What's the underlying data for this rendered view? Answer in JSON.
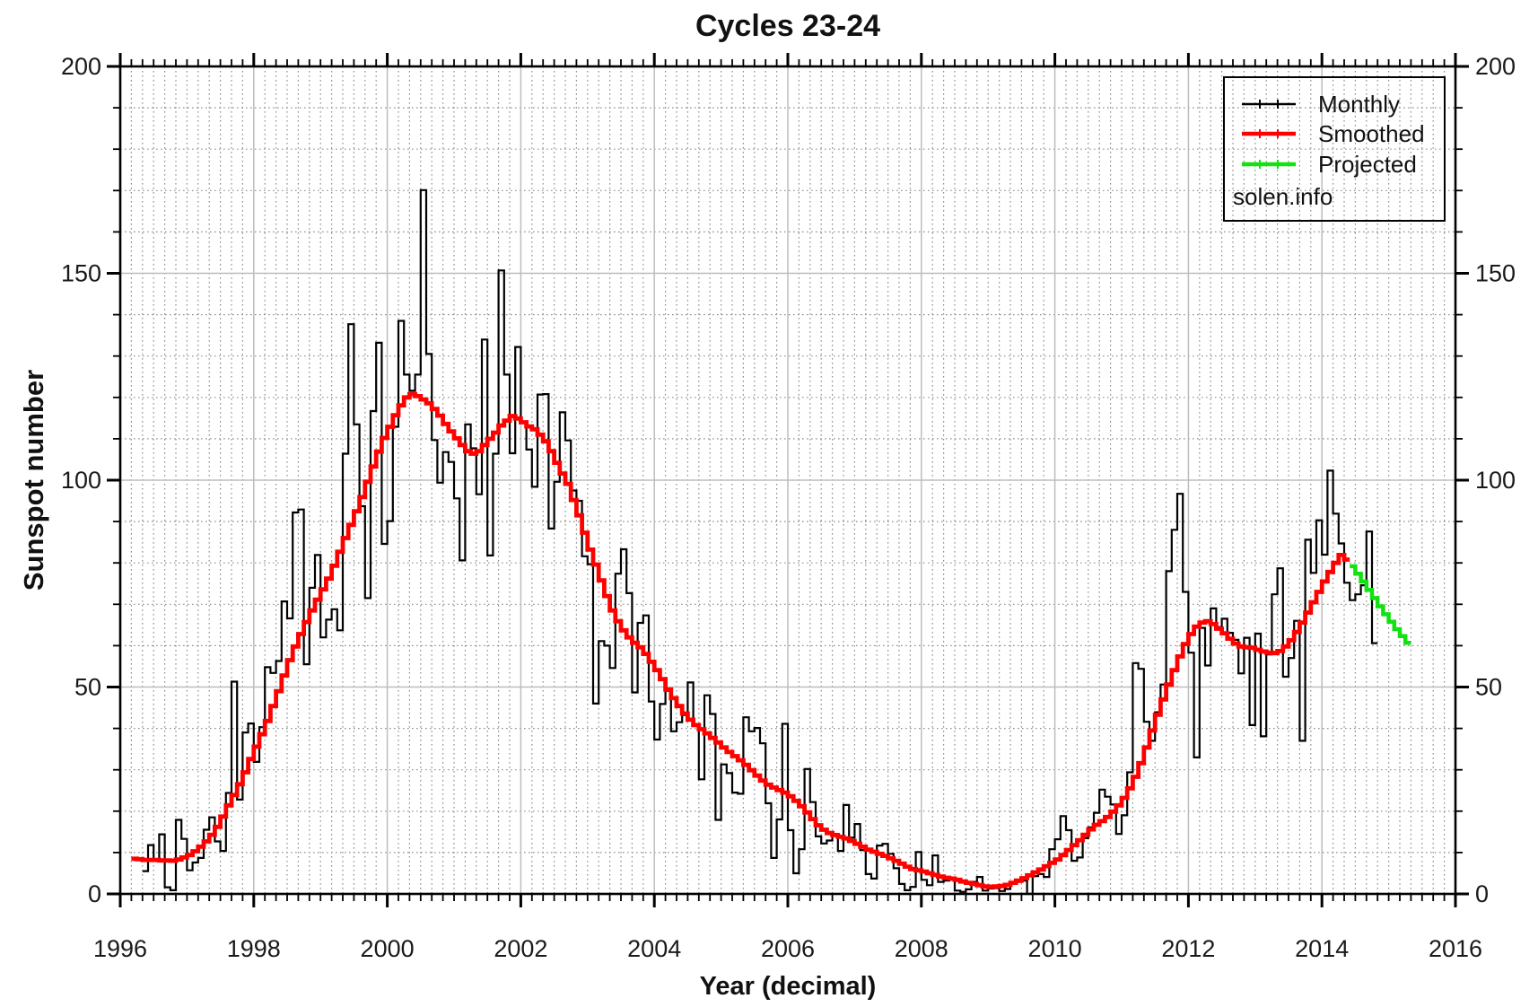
{
  "watermark": "solen.info",
  "colors": {
    "monthly": "#000000",
    "smoothed": "#ff0000",
    "projected": "#12e112",
    "grid_major": "#bdbdbd",
    "grid_minor": "#8f8f8f",
    "axis": "#000000",
    "text": "#1a1a1a"
  },
  "legend": {
    "position": "top-right",
    "entries": [
      "Monthly",
      "Smoothed",
      "Projected"
    ]
  },
  "chart_data": {
    "type": "line",
    "title": "Cycles 23-24",
    "xlabel": "Year (decimal)",
    "ylabel": "Sunspot number",
    "xlim": [
      1996,
      2016
    ],
    "ylim": [
      0,
      200
    ],
    "x_major_ticks": [
      1996,
      1998,
      2000,
      2002,
      2004,
      2006,
      2008,
      2010,
      2012,
      2014,
      2016
    ],
    "y_major_ticks": [
      0,
      50,
      100,
      150,
      200
    ],
    "x_minor_step_years": 0.166667,
    "y_minor_step": 10,
    "grid": "solid major lines, dotted minor lines",
    "legend_position": "top-right",
    "series": [
      {
        "name": "Monthly",
        "color": "#000000",
        "width": 2.2,
        "style": "histeps",
        "x_start": 1996.375,
        "x_step": 0.0833333,
        "values": [
          5.5,
          11.8,
          8.2,
          14.4,
          1.6,
          0.9,
          17.9,
          13.3,
          5.7,
          7.6,
          8.7,
          15.5,
          18.5,
          12.7,
          10.4,
          24.4,
          51.3,
          22.8,
          39.0,
          41.2,
          31.9,
          40.3,
          54.8,
          53.4,
          56.3,
          70.7,
          66.6,
          92.2,
          92.9,
          55.5,
          74.0,
          81.9,
          62.0,
          66.3,
          68.8,
          63.7,
          106.4,
          137.7,
          113.5,
          93.7,
          71.5,
          116.7,
          133.2,
          84.6,
          90.1,
          112.9,
          138.5,
          125.5,
          121.6,
          125.5,
          170.1,
          130.5,
          109.7,
          99.4,
          106.8,
          104.4,
          95.6,
          80.6,
          113.5,
          107.7,
          96.6,
          134.0,
          81.8,
          106.4,
          150.7,
          125.5,
          106.5,
          132.2,
          114.1,
          107.4,
          98.4,
          120.7,
          120.8,
          88.3,
          99.6,
          116.4,
          109.6,
          97.5,
          95.0,
          81.6,
          79.7,
          46.0,
          61.1,
          60.0,
          54.6,
          77.4,
          83.3,
          72.7,
          48.7,
          65.5,
          67.3,
          46.5,
          37.3,
          45.9,
          49.1,
          39.3,
          41.5,
          43.2,
          51.1,
          40.9,
          27.7,
          48.0,
          43.5,
          17.9,
          31.3,
          29.2,
          24.5,
          24.2,
          42.7,
          39.3,
          40.1,
          36.4,
          21.9,
          8.7,
          18.0,
          41.1,
          15.4,
          5.0,
          10.8,
          30.2,
          22.2,
          13.9,
          12.2,
          12.9,
          14.5,
          10.4,
          21.5,
          13.6,
          16.9,
          10.6,
          4.8,
          3.7,
          11.7,
          12.1,
          9.7,
          6.2,
          2.4,
          0.9,
          1.7,
          10.1,
          3.4,
          2.1,
          9.3,
          2.9,
          3.2,
          3.4,
          0.8,
          0.5,
          1.1,
          2.9,
          4.1,
          0.8,
          1.3,
          1.4,
          0.7,
          1.2,
          2.9,
          2.9,
          3.2,
          0.0,
          4.3,
          4.8,
          4.1,
          10.8,
          13.2,
          18.8,
          15.4,
          8.0,
          8.8,
          13.5,
          16.1,
          19.6,
          25.2,
          23.5,
          21.6,
          14.5,
          19.0,
          29.4,
          55.8,
          54.4,
          41.6,
          37.0,
          43.9,
          50.6,
          78.0,
          88.0,
          96.7,
          73.0,
          58.3,
          33.0,
          64.3,
          55.2,
          69.0,
          64.5,
          66.5,
          63.1,
          61.4,
          53.3,
          61.9,
          40.8,
          62.9,
          38.1,
          57.9,
          72.4,
          78.7,
          52.5,
          57.0,
          66.0,
          37.0,
          85.6,
          77.6,
          90.3,
          82.0,
          102.3,
          91.9,
          84.7,
          75.2,
          71.0,
          72.4,
          74.6,
          87.6,
          60.6
        ]
      },
      {
        "name": "Smoothed",
        "color": "#ff0000",
        "width": 4.8,
        "style": "histeps",
        "x_start": 1996.2083,
        "x_step": 0.0833333,
        "values": [
          8.5,
          8.4,
          8.2,
          8.2,
          8.2,
          8.1,
          8.1,
          8.0,
          8.3,
          8.8,
          9.4,
          10.3,
          11.4,
          12.7,
          14.3,
          16.2,
          18.7,
          21.4,
          23.9,
          26.5,
          29.4,
          32.6,
          35.6,
          38.6,
          41.8,
          45.4,
          49.0,
          52.8,
          56.5,
          59.8,
          62.8,
          65.7,
          68.5,
          71.1,
          73.6,
          76.2,
          79.3,
          82.7,
          86.0,
          89.2,
          92.5,
          95.9,
          99.6,
          103.3,
          106.9,
          110.2,
          112.9,
          115.7,
          118.1,
          120.0,
          120.8,
          120.3,
          119.5,
          118.6,
          117.2,
          115.6,
          113.6,
          111.8,
          110.1,
          108.5,
          107.0,
          106.4,
          107.0,
          108.5,
          110.0,
          111.5,
          113.2,
          114.4,
          115.5,
          114.9,
          114.0,
          113.0,
          112.3,
          111.0,
          109.4,
          107.0,
          104.2,
          101.6,
          99.1,
          95.2,
          91.5,
          87.3,
          83.2,
          79.6,
          75.8,
          72.0,
          68.5,
          65.9,
          63.7,
          62.0,
          60.7,
          59.6,
          58.0,
          56.1,
          54.1,
          51.9,
          49.4,
          47.3,
          45.4,
          43.6,
          42.1,
          40.8,
          39.8,
          38.8,
          37.7,
          36.6,
          35.4,
          34.3,
          33.3,
          32.3,
          31.2,
          29.9,
          28.6,
          27.4,
          26.4,
          25.7,
          25.1,
          24.5,
          23.6,
          22.5,
          21.2,
          19.7,
          18.1,
          16.6,
          15.5,
          14.7,
          14.2,
          13.8,
          13.4,
          12.8,
          12.1,
          11.4,
          10.7,
          10.2,
          9.7,
          9.2,
          8.6,
          8.0,
          7.3,
          6.6,
          6.0,
          5.7,
          5.4,
          5.0,
          4.6,
          4.2,
          3.9,
          3.7,
          3.4,
          3.0,
          2.7,
          2.4,
          2.1,
          1.8,
          1.7,
          1.8,
          1.9,
          2.2,
          2.7,
          3.2,
          3.8,
          4.5,
          5.2,
          5.9,
          6.7,
          7.5,
          8.3,
          9.4,
          10.6,
          11.8,
          13.0,
          14.3,
          15.6,
          16.7,
          17.6,
          18.6,
          19.9,
          21.4,
          23.2,
          25.5,
          28.3,
          31.6,
          35.4,
          39.5,
          43.3,
          47.0,
          50.6,
          54.1,
          57.4,
          60.4,
          62.8,
          64.6,
          65.6,
          65.9,
          65.2,
          64.1,
          63.0,
          61.7,
          60.5,
          59.8,
          59.6,
          59.5,
          59.0,
          58.6,
          58.3,
          58.2,
          58.7,
          59.8,
          61.3,
          63.3,
          65.6,
          68.0,
          70.5,
          73.0,
          75.5,
          77.8,
          80.0,
          81.9,
          80.8
        ]
      },
      {
        "name": "Projected",
        "color": "#12e112",
        "width": 4.5,
        "style": "histeps",
        "x_start": 2014.4583,
        "x_step": 0.0833333,
        "values": [
          79.2,
          77.4,
          75.5,
          73.5,
          71.5,
          69.5,
          67.6,
          65.8,
          64.0,
          62.3,
          60.7
        ]
      }
    ]
  }
}
